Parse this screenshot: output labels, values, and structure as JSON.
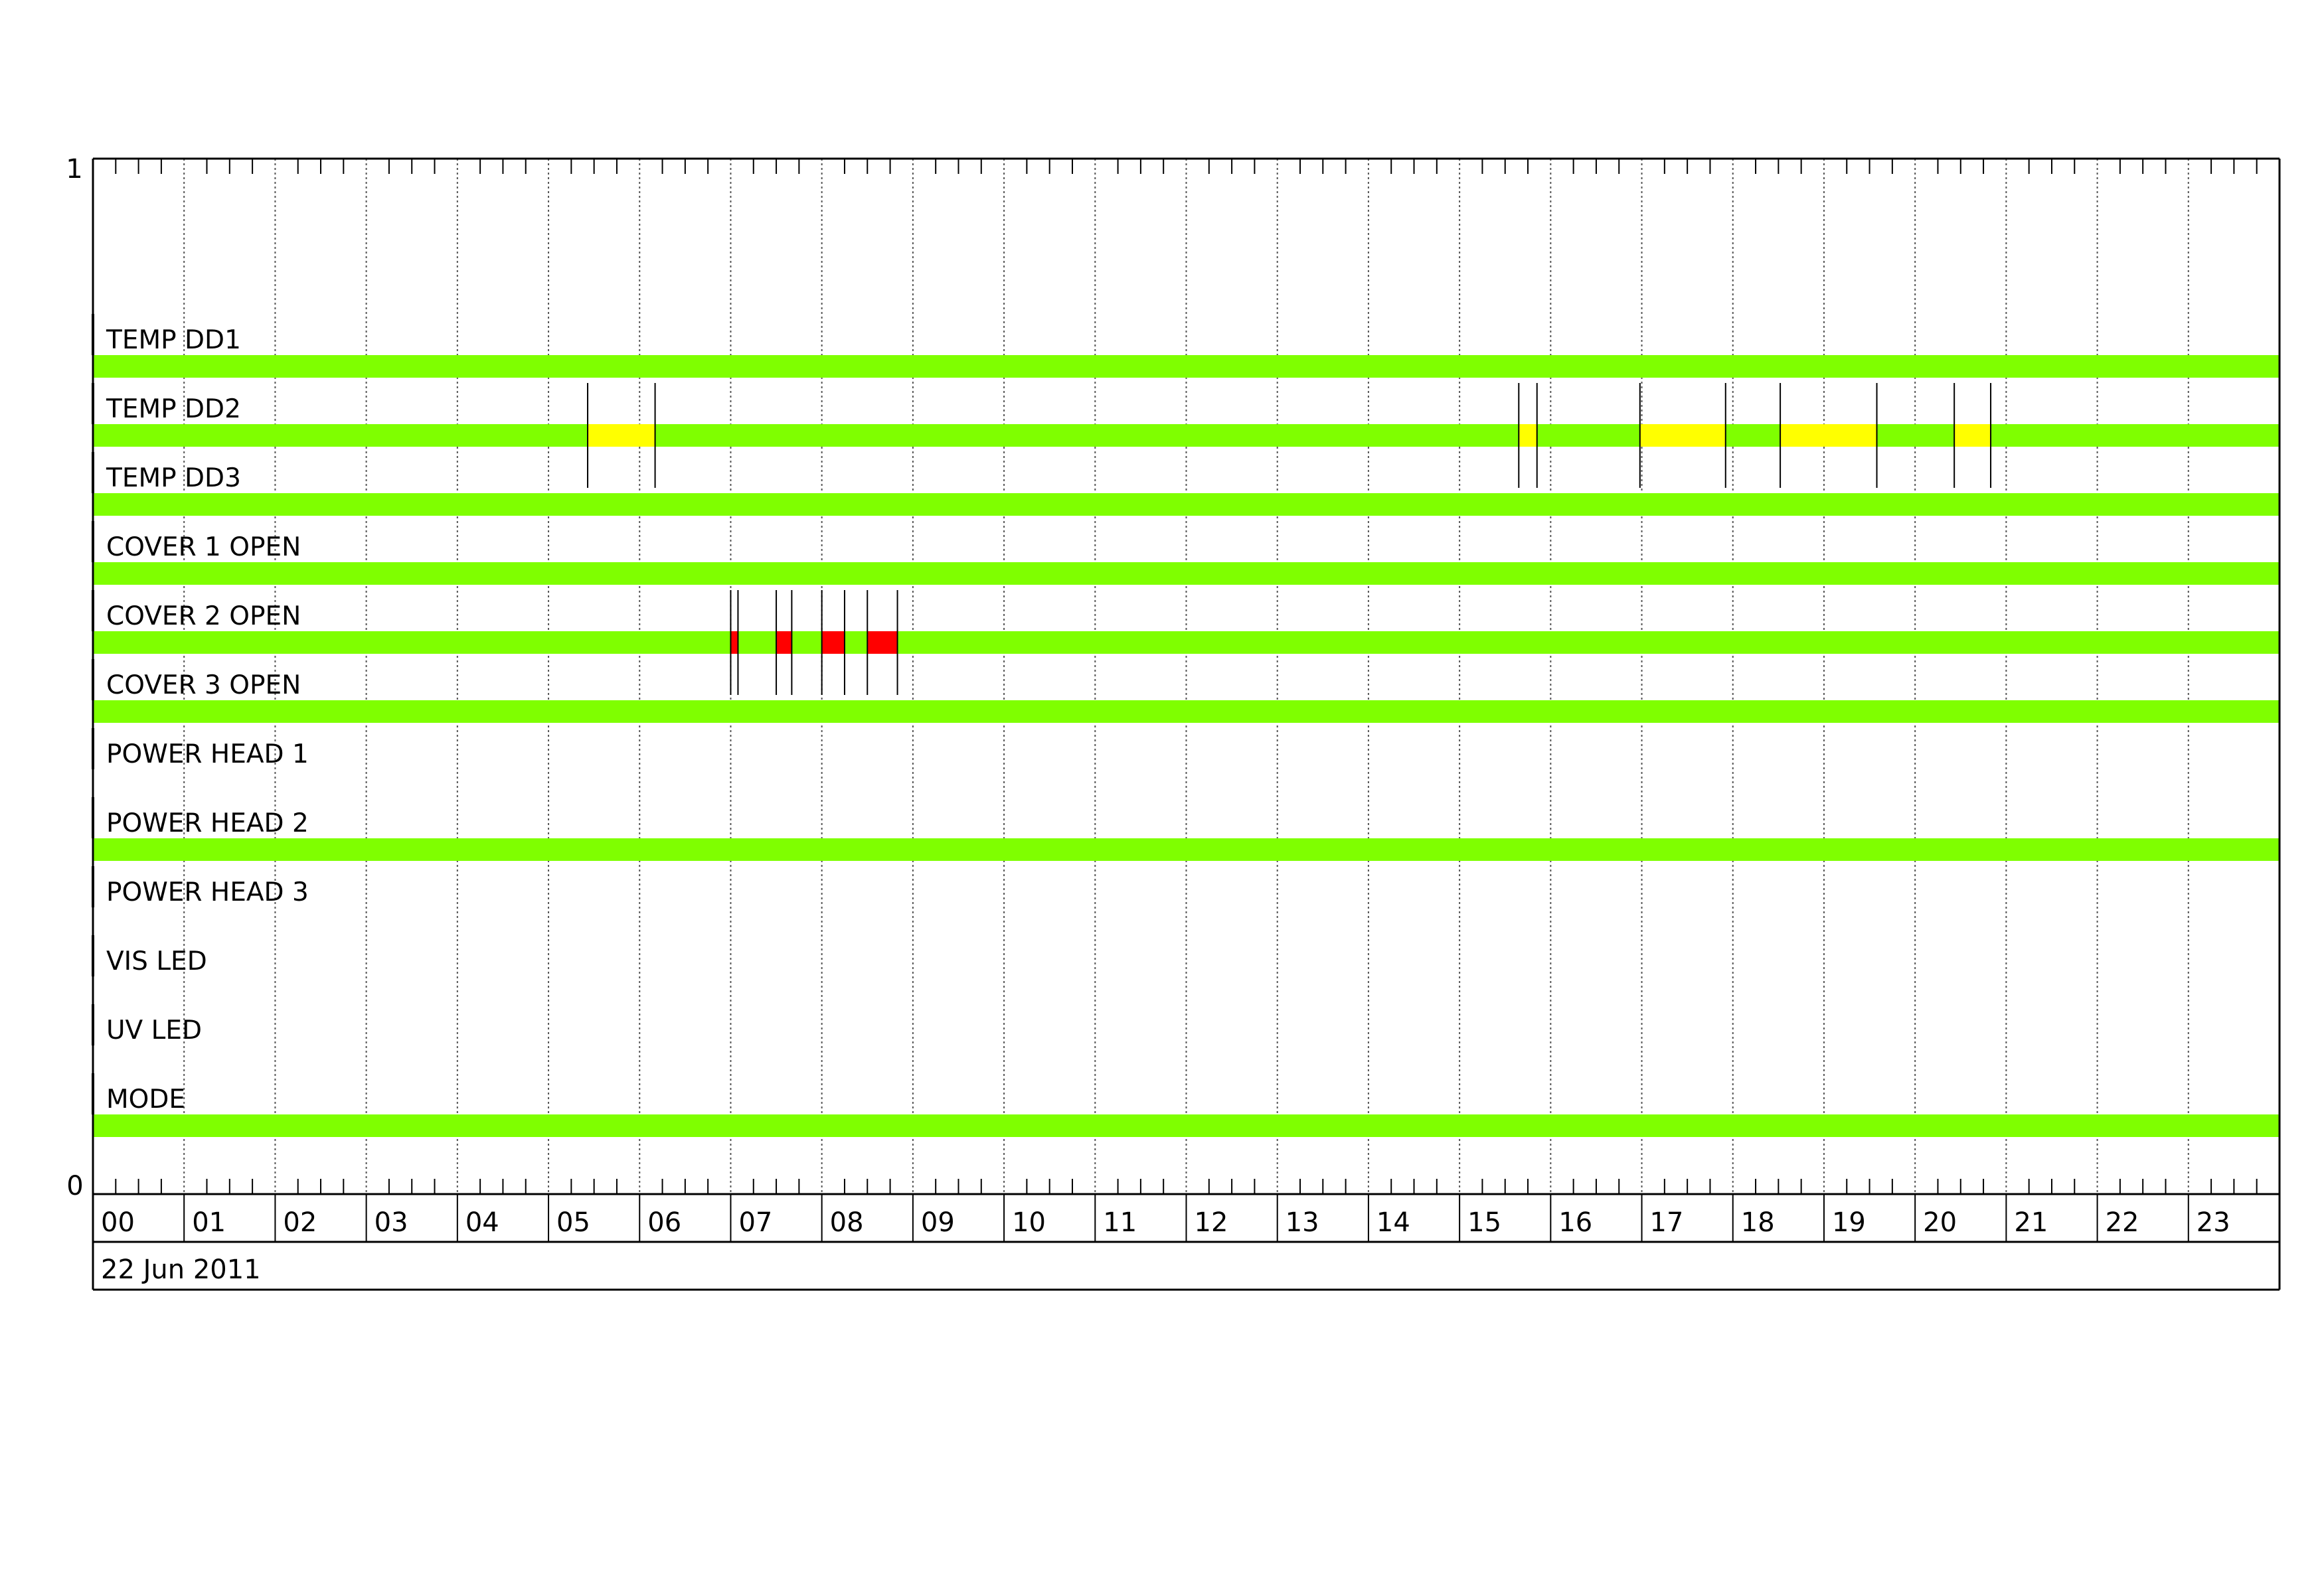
{
  "chart_data": {
    "type": "timeline",
    "date_label": "22 Jun 2011",
    "x_range_hours": [
      0,
      24
    ],
    "x_tick_labels": [
      "00",
      "01",
      "02",
      "03",
      "04",
      "05",
      "06",
      "07",
      "08",
      "09",
      "10",
      "11",
      "12",
      "13",
      "14",
      "15",
      "16",
      "17",
      "18",
      "19",
      "20",
      "21",
      "22",
      "23"
    ],
    "minor_tick_minutes": 15,
    "y_tick_labels": {
      "top": "1",
      "bottom": "0"
    },
    "grid": true,
    "colors": {
      "ok": "#7fff00",
      "warning": "#ffff00",
      "alarm": "#ff0000"
    },
    "rows": [
      {
        "label": "TEMP  DD1",
        "has_data": true,
        "events": []
      },
      {
        "label": "TEMP  DD2",
        "has_data": true,
        "events": [
          {
            "start": 5.43,
            "end": 6.17,
            "state": "warning"
          },
          {
            "start": 15.65,
            "end": 15.85,
            "state": "warning"
          },
          {
            "start": 16.98,
            "end": 17.92,
            "state": "warning"
          },
          {
            "start": 18.52,
            "end": 19.58,
            "state": "warning"
          },
          {
            "start": 20.43,
            "end": 20.83,
            "state": "warning"
          }
        ]
      },
      {
        "label": "TEMP  DD3",
        "has_data": true,
        "events": []
      },
      {
        "label": "COVER  1  OPEN",
        "has_data": true,
        "events": []
      },
      {
        "label": "COVER  2  OPEN",
        "has_data": true,
        "events": [
          {
            "start": 7.0,
            "end": 7.08,
            "state": "alarm"
          },
          {
            "start": 7.5,
            "end": 7.67,
            "state": "alarm"
          },
          {
            "start": 8.0,
            "end": 8.25,
            "state": "alarm"
          },
          {
            "start": 8.5,
            "end": 8.83,
            "state": "alarm"
          }
        ]
      },
      {
        "label": "COVER  3  OPEN",
        "has_data": true,
        "events": []
      },
      {
        "label": "POWER  HEAD  1",
        "has_data": false,
        "events": []
      },
      {
        "label": "POWER  HEAD  2",
        "has_data": true,
        "events": []
      },
      {
        "label": "POWER  HEAD  3",
        "has_data": false,
        "events": []
      },
      {
        "label": "VIS  LED",
        "has_data": false,
        "events": []
      },
      {
        "label": "UV  LED",
        "has_data": false,
        "events": []
      },
      {
        "label": "MODE",
        "has_data": true,
        "events": []
      }
    ]
  }
}
